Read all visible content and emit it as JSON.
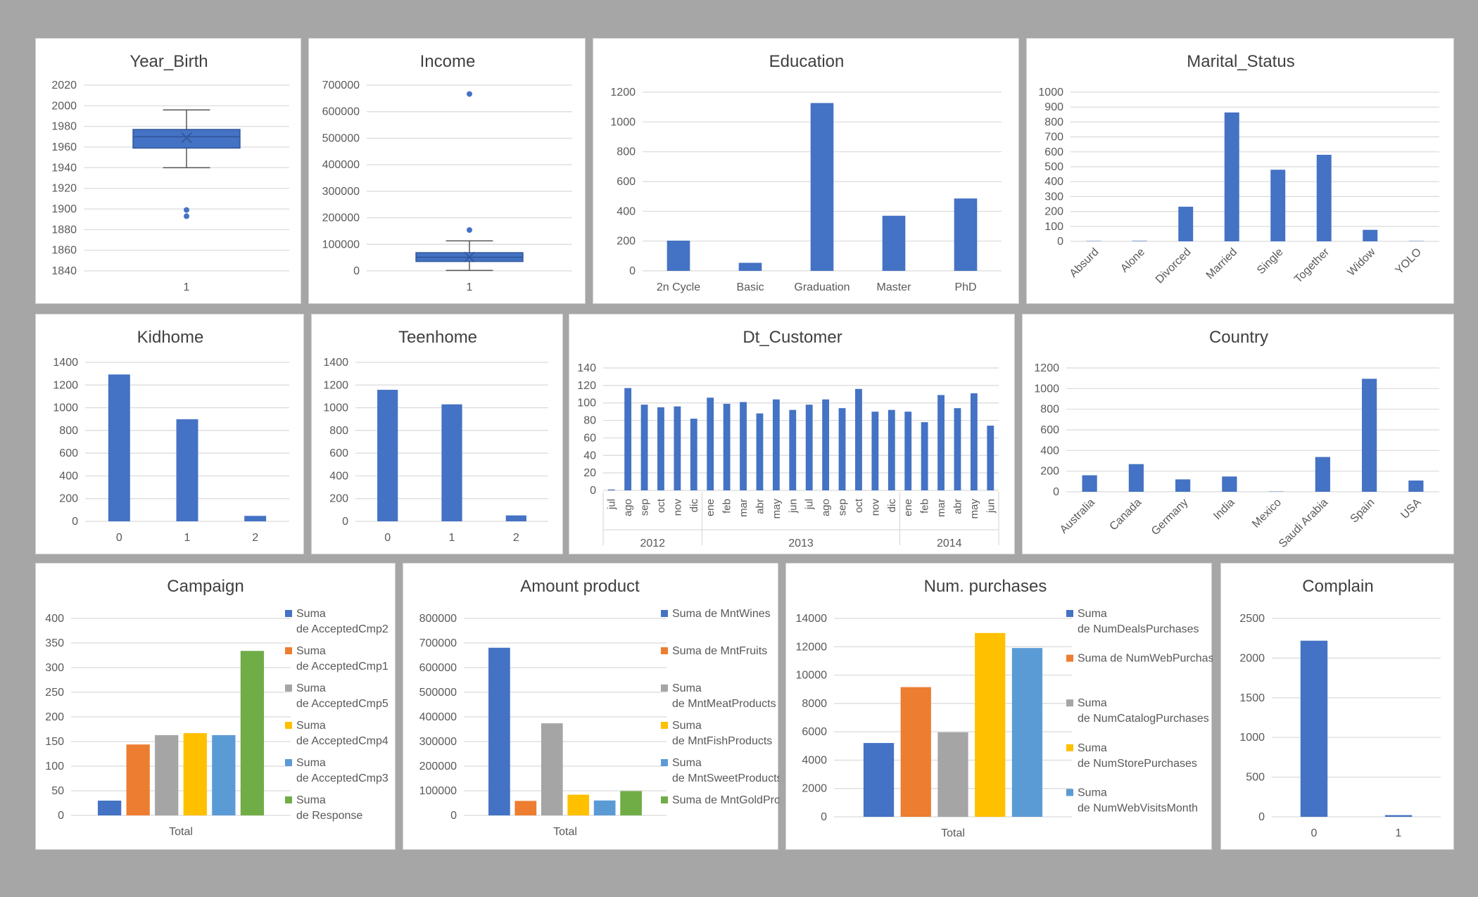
{
  "theme": {
    "blue": "#4472c4",
    "orange": "#ed7d31",
    "gray": "#a5a5a5",
    "yellow": "#ffc000",
    "lightblue": "#5b9bd5",
    "green": "#70ad47",
    "grid": "#d9d9d9",
    "text": "#595959",
    "title": "#404040"
  },
  "chart_data": [
    {
      "id": "year_birth",
      "type": "box",
      "title": "Year_Birth",
      "categories": [
        "1"
      ],
      "ylim": [
        1840,
        2020
      ],
      "yticks": [
        1840,
        1860,
        1880,
        1900,
        1920,
        1940,
        1960,
        1980,
        2000,
        2020
      ],
      "box": {
        "min": 1940,
        "q1": 1959,
        "median": 1970,
        "q3": 1977,
        "max": 1996,
        "mean": 1969
      },
      "outliers": [
        1893,
        1899
      ]
    },
    {
      "id": "income",
      "type": "box",
      "title": "Income",
      "categories": [
        "1"
      ],
      "ylim": [
        0,
        700000
      ],
      "yticks": [
        0,
        100000,
        200000,
        300000,
        400000,
        500000,
        600000,
        700000
      ],
      "box": {
        "min": 1730,
        "q1": 35500,
        "median": 51500,
        "q3": 68500,
        "max": 113000,
        "mean": 52200
      },
      "outliers": [
        153924,
        666666
      ]
    },
    {
      "id": "education",
      "type": "bar",
      "title": "Education",
      "categories": [
        "2n Cycle",
        "Basic",
        "Graduation",
        "Master",
        "PhD"
      ],
      "values": [
        203,
        54,
        1127,
        370,
        486
      ],
      "ylim": [
        0,
        1200
      ],
      "yticks": [
        0,
        200,
        400,
        600,
        800,
        1000,
        1200
      ]
    },
    {
      "id": "marital",
      "type": "bar",
      "title": "Marital_Status",
      "categories": [
        "Absurd",
        "Alone",
        "Divorced",
        "Married",
        "Single",
        "Together",
        "Widow",
        "YOLO"
      ],
      "values": [
        2,
        3,
        232,
        864,
        480,
        580,
        77,
        2
      ],
      "ylim": [
        0,
        1000
      ],
      "yticks": [
        0,
        100,
        200,
        300,
        400,
        500,
        600,
        700,
        800,
        900,
        1000
      ],
      "rotate_labels": true
    },
    {
      "id": "kidhome",
      "type": "bar",
      "title": "Kidhome",
      "categories": [
        "0",
        "1",
        "2"
      ],
      "values": [
        1293,
        899,
        48
      ],
      "ylim": [
        0,
        1400
      ],
      "yticks": [
        0,
        200,
        400,
        600,
        800,
        1000,
        1200,
        1400
      ]
    },
    {
      "id": "teenhome",
      "type": "bar",
      "title": "Teenhome",
      "categories": [
        "0",
        "1",
        "2"
      ],
      "values": [
        1158,
        1030,
        52
      ],
      "ylim": [
        0,
        1400
      ],
      "yticks": [
        0,
        200,
        400,
        600,
        800,
        1000,
        1200,
        1400
      ]
    },
    {
      "id": "dt_customer",
      "type": "bar",
      "title": "Dt_Customer",
      "categories": [
        "jul",
        "ago",
        "sep",
        "oct",
        "nov",
        "dic",
        "ene",
        "feb",
        "mar",
        "abr",
        "may",
        "jun",
        "jul",
        "ago",
        "sep",
        "oct",
        "nov",
        "dic",
        "ene",
        "feb",
        "mar",
        "abr",
        "may",
        "jun"
      ],
      "values": [
        1,
        117,
        98,
        95,
        96,
        82,
        106,
        99,
        101,
        88,
        104,
        92,
        98,
        104,
        94,
        116,
        90,
        92,
        90,
        78,
        109,
        94,
        111,
        74
      ],
      "groups": [
        {
          "label": "2012",
          "count": 6
        },
        {
          "label": "2013",
          "count": 12
        },
        {
          "label": "2014",
          "count": 6
        }
      ],
      "ylim": [
        0,
        140
      ],
      "yticks": [
        0,
        20,
        40,
        60,
        80,
        100,
        120,
        140
      ]
    },
    {
      "id": "country",
      "type": "bar",
      "title": "Country",
      "categories": [
        "Australia",
        "Canada",
        "Germany",
        "India",
        "Mexico",
        "Saudi Arabia",
        "Spain",
        "USA"
      ],
      "values": [
        160,
        268,
        120,
        148,
        3,
        337,
        1095,
        109
      ],
      "ylim": [
        0,
        1200
      ],
      "yticks": [
        0,
        200,
        400,
        600,
        800,
        1000,
        1200
      ],
      "rotate_labels": true
    },
    {
      "id": "campaign",
      "type": "grouped-bar",
      "title": "Campaign",
      "categories": [
        "Total"
      ],
      "ylim": [
        0,
        400
      ],
      "yticks": [
        0,
        50,
        100,
        150,
        200,
        250,
        300,
        350,
        400
      ],
      "series": [
        {
          "name": "Suma de AcceptedCmp2",
          "value": 30,
          "color": "#4472c4"
        },
        {
          "name": "Suma de AcceptedCmp1",
          "value": 144,
          "color": "#ed7d31"
        },
        {
          "name": "Suma de AcceptedCmp5",
          "value": 163,
          "color": "#a5a5a5"
        },
        {
          "name": "Suma de AcceptedCmp4",
          "value": 167,
          "color": "#ffc000"
        },
        {
          "name": "Suma de AcceptedCmp3",
          "value": 163,
          "color": "#5b9bd5"
        },
        {
          "name": "Suma de Response",
          "value": 334,
          "color": "#70ad47"
        }
      ]
    },
    {
      "id": "amount",
      "type": "grouped-bar",
      "title": "Amount product",
      "categories": [
        "Total"
      ],
      "ylim": [
        0,
        800000
      ],
      "yticks": [
        0,
        100000,
        200000,
        300000,
        400000,
        500000,
        600000,
        700000,
        800000
      ],
      "series": [
        {
          "name": "Suma de MntWines",
          "value": 680816,
          "color": "#4472c4"
        },
        {
          "name": "Suma de MntFruits",
          "value": 58917,
          "color": "#ed7d31"
        },
        {
          "name": "Suma de MntMeatProducts",
          "value": 373968,
          "color": "#a5a5a5"
        },
        {
          "name": "Suma de MntFishProducts",
          "value": 84057,
          "color": "#ffc000"
        },
        {
          "name": "Suma de MntSweetProducts",
          "value": 60621,
          "color": "#5b9bd5"
        },
        {
          "name": "Suma de MntGoldProds",
          "value": 98609,
          "color": "#70ad47"
        }
      ]
    },
    {
      "id": "purchases",
      "type": "grouped-bar",
      "title": "Num. purchases",
      "categories": [
        "Total"
      ],
      "ylim": [
        0,
        14000
      ],
      "yticks": [
        0,
        2000,
        4000,
        6000,
        8000,
        10000,
        12000,
        14000
      ],
      "series": [
        {
          "name": "Suma de NumDealsPurchases",
          "value": 5208,
          "color": "#4472c4"
        },
        {
          "name": "Suma de NumWebPurchases",
          "value": 9150,
          "color": "#ed7d31"
        },
        {
          "name": "Suma de NumCatalogPurchases",
          "value": 5963,
          "color": "#a5a5a5"
        },
        {
          "name": "Suma de NumStorePurchases",
          "value": 12970,
          "color": "#ffc000"
        },
        {
          "name": "Suma de NumWebVisitsMonth",
          "value": 11909,
          "color": "#5b9bd5"
        }
      ]
    },
    {
      "id": "complain",
      "type": "bar",
      "title": "Complain",
      "categories": [
        "0",
        "1"
      ],
      "values": [
        2219,
        21
      ],
      "ylim": [
        0,
        2500
      ],
      "yticks": [
        0,
        500,
        1000,
        1500,
        2000,
        2500
      ]
    }
  ]
}
